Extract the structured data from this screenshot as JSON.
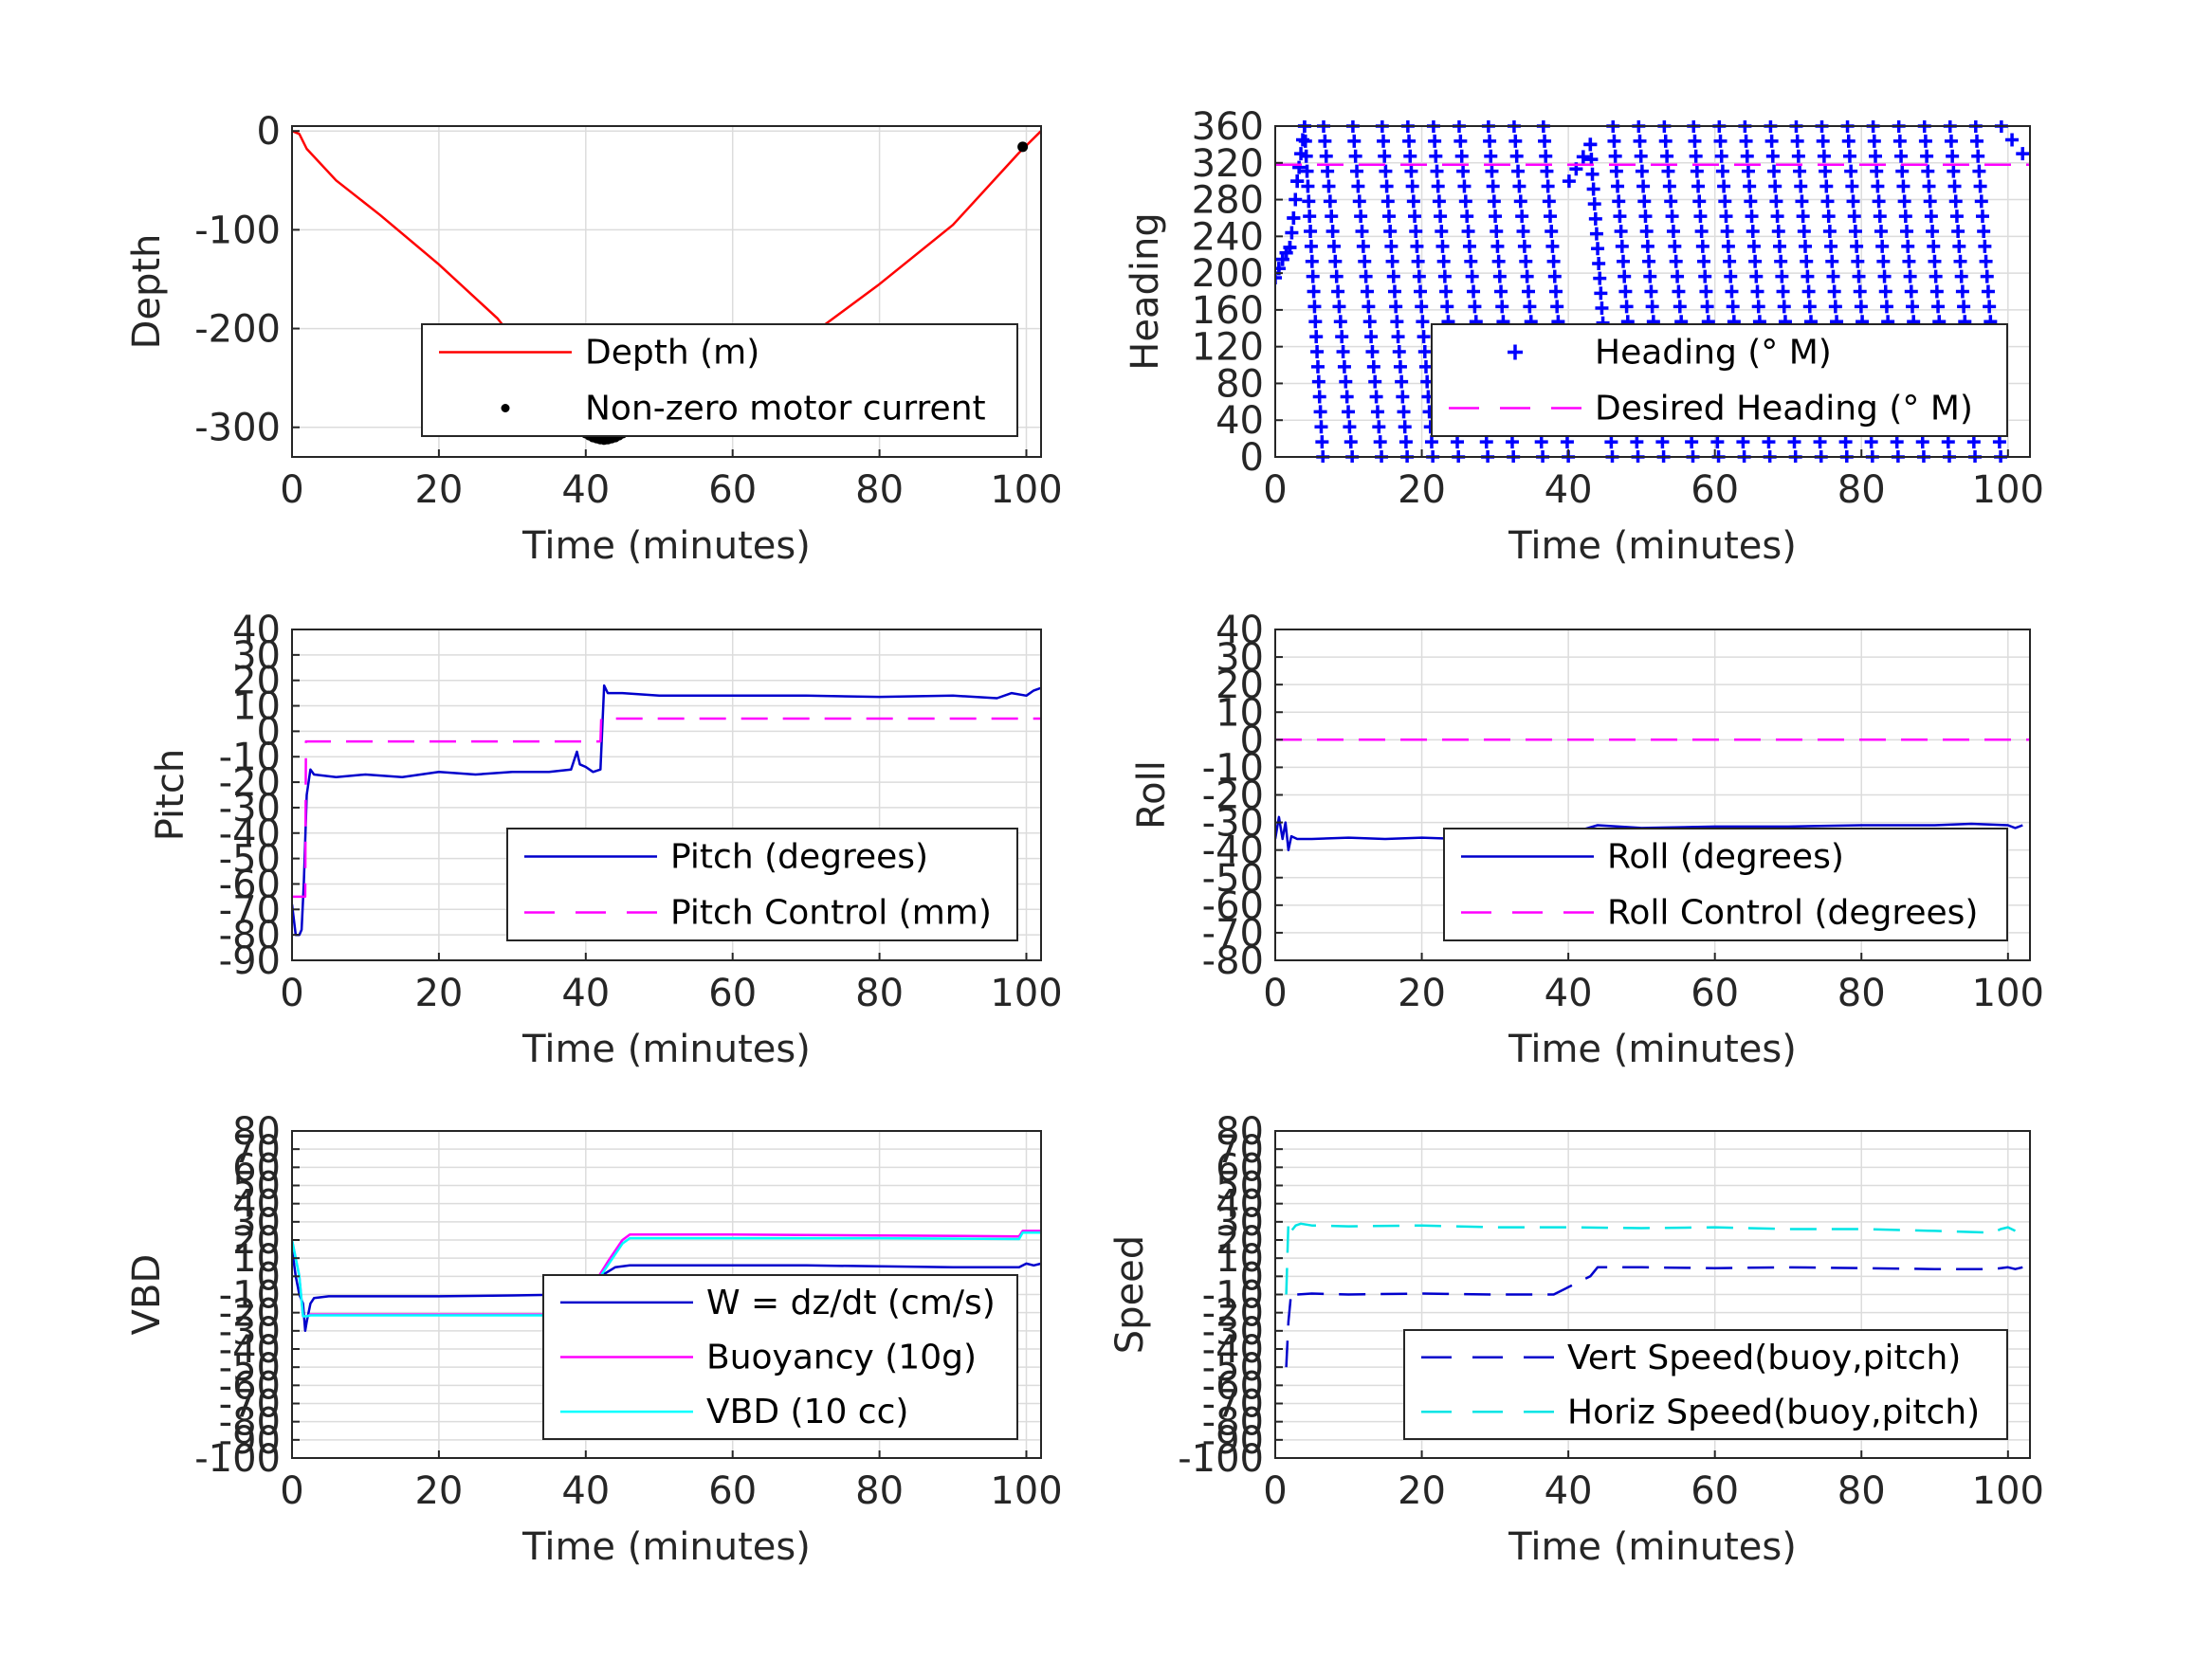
{
  "chart_data": [
    {
      "id": "depth",
      "type": "line",
      "xlabel": "Time (minutes)",
      "ylabel": "Depth",
      "xlim": [
        0,
        102
      ],
      "ylim": [
        -330,
        5
      ],
      "xticks": [
        0,
        20,
        40,
        60,
        80,
        100
      ],
      "yticks": [
        0,
        -100,
        -200,
        -300
      ],
      "series": [
        {
          "name": "Depth (m)",
          "style": "line",
          "color": "#ff0000",
          "x": [
            0,
            1,
            2,
            6,
            12,
            20,
            28,
            36,
            39,
            40,
            41,
            42,
            43,
            44,
            45,
            46,
            50,
            60,
            70,
            80,
            90,
            99,
            102
          ],
          "y": [
            0,
            -3,
            -18,
            -50,
            -85,
            -135,
            -190,
            -265,
            -298,
            -304,
            -309,
            -312,
            -312,
            -310,
            -307,
            -304,
            -290,
            -254,
            -210,
            -155,
            -95,
            -22,
            0
          ]
        },
        {
          "name": "Non-zero motor current",
          "style": "dots",
          "color": "#000000",
          "x": [
            39,
            39.5,
            40,
            40.5,
            41,
            41.5,
            42,
            42.5,
            43,
            43.5,
            44,
            44.5,
            45,
            45.5,
            46,
            99.5
          ],
          "y": [
            -302,
            -304,
            -306,
            -308,
            -310,
            -311,
            -312,
            -312.5,
            -312,
            -311,
            -310,
            -308,
            -306,
            -304,
            -302,
            -16
          ]
        }
      ],
      "legend_loc": "bottom-right"
    },
    {
      "id": "heading",
      "type": "scatter",
      "xlabel": "Time (minutes)",
      "ylabel": "Heading",
      "xlim": [
        0,
        103
      ],
      "ylim": [
        0,
        360
      ],
      "xticks": [
        0,
        20,
        40,
        60,
        80,
        100
      ],
      "yticks": [
        0,
        40,
        80,
        120,
        160,
        200,
        240,
        280,
        320,
        360
      ],
      "series": [
        {
          "name": "Heading (° M)",
          "style": "plus-sawtooth",
          "color": "#0000ff",
          "x": [
            0.0,
            0.5,
            1.0,
            1.5,
            2.0,
            2.5,
            3.0,
            4.0,
            6.5,
            6.6,
            10.5,
            10.6,
            14.5,
            14.6,
            18.0,
            18.1,
            21.5,
            21.6,
            25.0,
            25.1,
            29.0,
            29.1,
            32.5,
            32.6,
            36.5,
            36.6,
            40.0,
            40.1,
            43.0,
            46.0,
            46.1,
            49.5,
            49.6,
            53.0,
            53.1,
            57.0,
            57.1,
            60.5,
            60.6,
            64.0,
            64.1,
            67.5,
            67.6,
            71.0,
            71.1,
            74.5,
            74.6,
            78.0,
            78.1,
            81.5,
            81.6,
            85.0,
            85.1,
            88.5,
            88.6,
            92.0,
            92.1,
            95.5,
            95.6,
            99.0,
            99.1,
            102.0
          ],
          "y": [
            195,
            205,
            215,
            222,
            228,
            260,
            300,
            360,
            0,
            360,
            0,
            360,
            0,
            360,
            0,
            360,
            0,
            360,
            0,
            360,
            0,
            360,
            0,
            360,
            0,
            360,
            0,
            300,
            340,
            0,
            360,
            0,
            360,
            0,
            360,
            0,
            360,
            0,
            360,
            0,
            360,
            0,
            360,
            0,
            360,
            0,
            360,
            0,
            360,
            0,
            360,
            0,
            360,
            0,
            360,
            0,
            360,
            0,
            360,
            0,
            360,
            330
          ]
        },
        {
          "name": "Desired Heading (° M)",
          "style": "dash",
          "color": "#ff00ff",
          "x": [
            0,
            103
          ],
          "y": [
            318,
            318
          ]
        }
      ],
      "legend_loc": "bottom-right"
    },
    {
      "id": "pitch",
      "type": "line",
      "xlabel": "Time (minutes)",
      "ylabel": "Pitch",
      "xlim": [
        0,
        102
      ],
      "ylim": [
        -90,
        40
      ],
      "xticks": [
        0,
        20,
        40,
        60,
        80,
        100
      ],
      "yticks": [
        40,
        30,
        20,
        10,
        0,
        -10,
        -20,
        -30,
        -40,
        -50,
        -60,
        -70,
        -80,
        -90
      ],
      "series": [
        {
          "name": "Pitch (degrees)",
          "style": "line",
          "color": "#0000cc",
          "x": [
            0,
            0.5,
            1.0,
            1.3,
            1.6,
            2.0,
            2.5,
            3,
            6,
            10,
            15,
            20,
            25,
            30,
            35,
            38,
            38.8,
            39.2,
            40,
            41,
            42,
            42.5,
            43,
            45,
            50,
            60,
            70,
            80,
            90,
            96,
            98,
            100,
            101,
            102
          ],
          "y": [
            -68,
            -80,
            -80,
            -78,
            -60,
            -25,
            -15,
            -17,
            -18,
            -17,
            -18,
            -16,
            -17,
            -16,
            -16,
            -15,
            -8,
            -13,
            -14,
            -16,
            -15,
            18,
            15,
            15,
            14,
            14,
            14,
            13.5,
            14,
            13,
            15,
            14,
            16,
            17
          ]
        },
        {
          "name": "Pitch Control (mm)",
          "style": "dash",
          "color": "#ff00ff",
          "x": [
            0,
            1.8,
            1.9,
            42,
            42.1,
            102
          ],
          "y": [
            -65,
            -65,
            -4,
            -4,
            5,
            5
          ]
        }
      ],
      "legend_loc": "bottom-right"
    },
    {
      "id": "roll",
      "type": "line",
      "xlabel": "Time (minutes)",
      "ylabel": "Roll",
      "xlim": [
        0,
        103
      ],
      "ylim": [
        -80,
        40
      ],
      "xticks": [
        0,
        20,
        40,
        60,
        80,
        100
      ],
      "yticks": [
        40,
        30,
        20,
        10,
        0,
        -10,
        -20,
        -30,
        -40,
        -50,
        -60,
        -70,
        -80
      ],
      "series": [
        {
          "name": "Roll (degrees)",
          "style": "line",
          "color": "#0000cc",
          "x": [
            0,
            0.5,
            1.0,
            1.4,
            1.8,
            2.2,
            3,
            5,
            10,
            15,
            20,
            25,
            30,
            35,
            38,
            40,
            42,
            44,
            50,
            60,
            70,
            80,
            90,
            95,
            100,
            101,
            102
          ],
          "y": [
            -36,
            -28,
            -36,
            -30,
            -40,
            -35,
            -36,
            -36,
            -35.5,
            -36,
            -35.5,
            -36,
            -35.5,
            -36,
            -35,
            -33,
            -32.5,
            -31,
            -32,
            -31.5,
            -31.5,
            -31,
            -31,
            -30.5,
            -31,
            -32,
            -31
          ]
        },
        {
          "name": "Roll Control (degrees)",
          "style": "dash",
          "color": "#ff00ff",
          "x": [
            0,
            103
          ],
          "y": [
            0,
            0
          ]
        }
      ],
      "legend_loc": "bottom-right"
    },
    {
      "id": "vbd",
      "type": "line",
      "xlabel": "Time (minutes)",
      "ylabel": "VBD",
      "xlim": [
        0,
        102
      ],
      "ylim": [
        -100,
        80
      ],
      "xticks": [
        0,
        20,
        40,
        60,
        80,
        100
      ],
      "yticks": [
        80,
        70,
        60,
        50,
        40,
        30,
        20,
        10,
        0,
        -10,
        -20,
        -30,
        -40,
        -50,
        -60,
        -70,
        -80,
        -90,
        -100
      ],
      "series": [
        {
          "name": "W = dz/dt (cm/s)",
          "style": "line",
          "color": "#0000cc",
          "x": [
            0,
            0.5,
            1.0,
            1.5,
            1.8,
            2.0,
            2.5,
            3,
            5,
            10,
            20,
            30,
            38,
            40,
            42,
            44,
            46,
            50,
            60,
            70,
            80,
            90,
            99,
            100,
            101,
            102
          ],
          "y": [
            15,
            0,
            -10,
            -15,
            -30,
            -25,
            -15,
            -12,
            -11,
            -11,
            -11,
            -10.5,
            -10,
            -7,
            0,
            5,
            6,
            6,
            6,
            6,
            5.5,
            5,
            5,
            7,
            6,
            7
          ]
        },
        {
          "name": "Buoyancy (10g)",
          "style": "line",
          "color": "#ff00ff",
          "x": [
            0,
            1.0,
            1.5,
            2.0,
            2.5,
            38,
            39,
            41,
            43,
            45,
            46,
            60,
            80,
            99,
            99.5,
            102
          ],
          "y": [
            20,
            0,
            -22,
            -22,
            -21,
            -21,
            -17,
            -5,
            8,
            20,
            23,
            23,
            22.5,
            22,
            25,
            25
          ]
        },
        {
          "name": "VBD (10 cc)",
          "style": "line",
          "color": "#00ffff",
          "x": [
            0,
            1.0,
            1.5,
            2.0,
            2.5,
            38,
            39,
            41,
            43,
            45,
            46,
            60,
            80,
            99,
            99.5,
            102
          ],
          "y": [
            20,
            0,
            -22,
            -22,
            -21.5,
            -21.5,
            -17,
            -6,
            6,
            18,
            21,
            21,
            21,
            20.5,
            24,
            24
          ]
        }
      ],
      "legend_loc": "bottom-right"
    },
    {
      "id": "speed",
      "type": "line",
      "xlabel": "Time (minutes)",
      "ylabel": "Speed",
      "xlim": [
        0,
        103
      ],
      "ylim": [
        -100,
        80
      ],
      "xticks": [
        0,
        20,
        40,
        60,
        80,
        100
      ],
      "yticks": [
        80,
        70,
        60,
        50,
        40,
        30,
        20,
        10,
        0,
        -10,
        -20,
        -30,
        -40,
        -50,
        -60,
        -70,
        -80,
        -90,
        -100
      ],
      "series": [
        {
          "name": "Vert Speed(buoy,pitch)",
          "style": "dash",
          "color": "#0000cc",
          "x": [
            1.5,
            1.8,
            2.2,
            3,
            5,
            10,
            20,
            30,
            38,
            40,
            43,
            44,
            46,
            50,
            60,
            70,
            80,
            90,
            98,
            100,
            101,
            102
          ],
          "y": [
            -50,
            -25,
            -8,
            -10,
            -9.5,
            -10,
            -9.5,
            -10,
            -10,
            -6,
            0,
            5,
            5,
            5,
            4.5,
            5,
            4.5,
            4,
            4,
            5,
            4,
            5
          ]
        },
        {
          "name": "Horiz Speed(buoy,pitch)",
          "style": "dash",
          "color": "#00e5e5",
          "x": [
            1.5,
            1.8,
            2.2,
            2.8,
            3.5,
            5,
            10,
            20,
            30,
            40,
            50,
            60,
            70,
            80,
            90,
            98,
            99,
            100,
            101
          ],
          "y": [
            -10,
            30,
            25,
            28,
            29,
            28,
            27.5,
            28,
            27,
            27,
            26.5,
            27,
            26,
            26,
            25,
            24,
            26,
            27,
            25
          ]
        }
      ],
      "legend_loc": "bottom-right"
    }
  ]
}
